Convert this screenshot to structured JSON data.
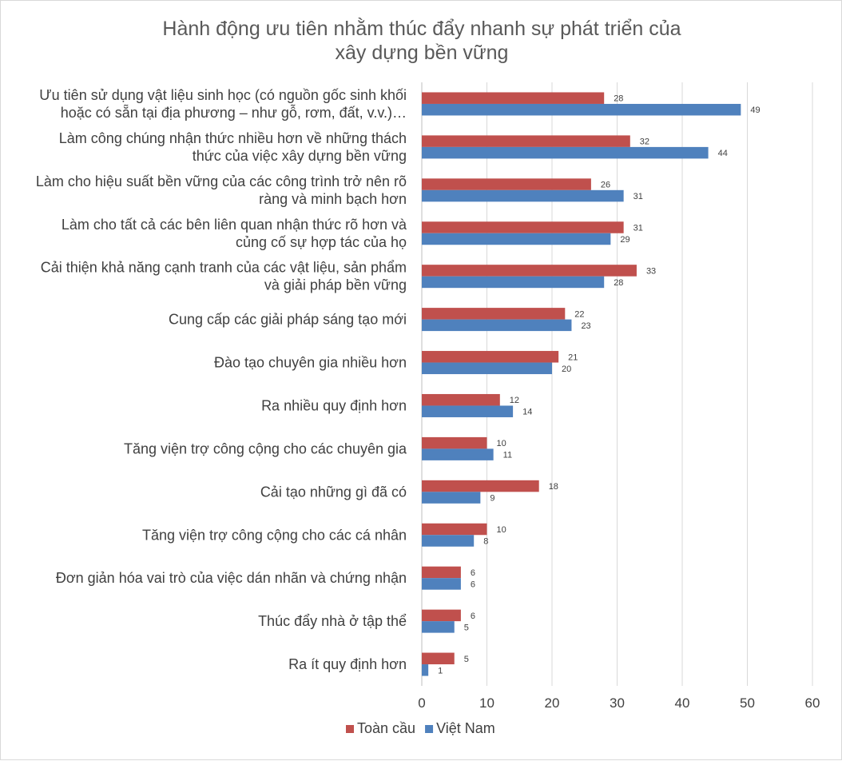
{
  "chart_data": {
    "type": "bar",
    "orientation": "horizontal",
    "title_lines": [
      "Hành động ưu tiên nhằm thúc đẩy nhanh sự phát triển của",
      "xây dựng bền vững"
    ],
    "categories": [
      [
        "Ưu tiên sử dụng vật liệu sinh học (có nguồn gốc sinh khối",
        "hoặc có sẵn tại địa phương – như gỗ, rơm, đất, v.v.)…"
      ],
      [
        "Làm công chúng nhận thức nhiều hơn về những thách",
        "thức của việc xây dựng bền vững"
      ],
      [
        "Làm cho hiệu suất bền vững của các công trình trở nên rõ",
        "ràng và minh bạch hơn"
      ],
      [
        "Làm cho tất cả các bên liên quan nhận thức rõ hơn và",
        "củng cố sự hợp tác của họ"
      ],
      [
        "Cải thiện khả năng cạnh tranh của các vật liệu, sản phẩm",
        "và giải pháp bền vững"
      ],
      [
        "Cung cấp các giải pháp sáng tạo mới"
      ],
      [
        "Đào tạo chuyên gia nhiều hơn"
      ],
      [
        "Ra nhiều quy định hơn"
      ],
      [
        "Tăng viện trợ công cộng cho các chuyên gia"
      ],
      [
        "Cải tạo những gì đã có"
      ],
      [
        "Tăng viện trợ công cộng cho các cá nhân"
      ],
      [
        "Đơn giản hóa vai trò của việc dán nhãn và chứng nhận"
      ],
      [
        "Thúc đẩy nhà ở tập thể"
      ],
      [
        "Ra ít quy định hơn"
      ]
    ],
    "series": [
      {
        "name": "Toàn cầu",
        "color": "#c0504d",
        "values": [
          28,
          32,
          26,
          31,
          33,
          22,
          21,
          12,
          10,
          18,
          10,
          6,
          6,
          5
        ]
      },
      {
        "name": "Việt Nam",
        "color": "#4f81bd",
        "values": [
          49,
          44,
          31,
          29,
          28,
          23,
          20,
          14,
          11,
          9,
          8,
          6,
          5,
          1
        ]
      }
    ],
    "xlim": [
      0,
      60
    ],
    "xticks": [
      0,
      10,
      20,
      30,
      40,
      50,
      60
    ],
    "grid": true,
    "legend": "bottom",
    "xlabel": "",
    "ylabel": ""
  }
}
